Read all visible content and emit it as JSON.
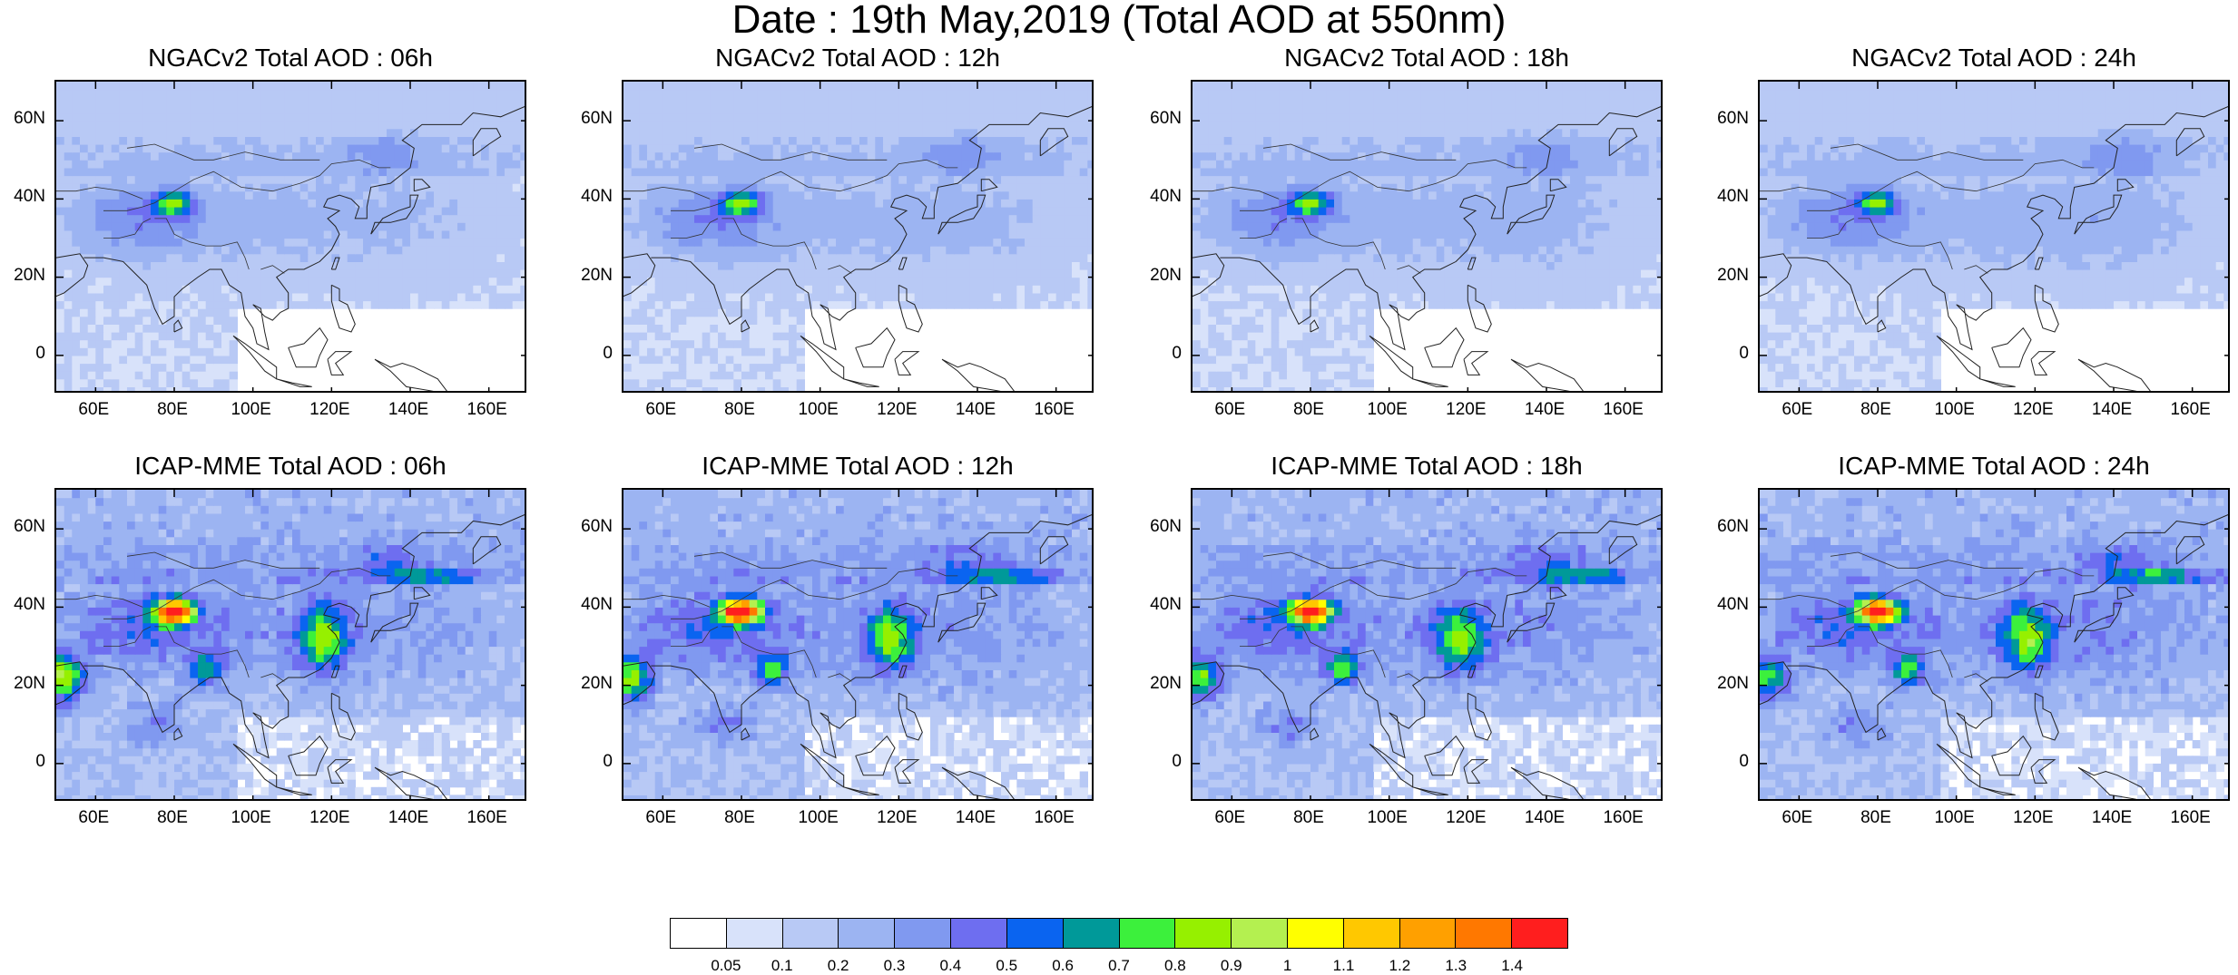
{
  "title": "Date : 19th May,2019 (Total AOD at 550nm)",
  "panels": [
    {
      "title": "NGACv2 Total AOD : 06h",
      "model": "ngac",
      "hour": 6
    },
    {
      "title": "NGACv2 Total AOD : 12h",
      "model": "ngac",
      "hour": 12
    },
    {
      "title": "NGACv2 Total AOD : 18h",
      "model": "ngac",
      "hour": 18
    },
    {
      "title": "NGACv2 Total AOD : 24h",
      "model": "ngac",
      "hour": 24
    },
    {
      "title": "ICAP-MME Total AOD : 06h",
      "model": "icap",
      "hour": 6
    },
    {
      "title": "ICAP-MME Total AOD : 12h",
      "model": "icap",
      "hour": 12
    },
    {
      "title": "ICAP-MME Total AOD : 18h",
      "model": "icap",
      "hour": 18
    },
    {
      "title": "ICAP-MME Total AOD : 24h",
      "model": "icap",
      "hour": 24
    }
  ],
  "lat_ticks": [
    "60N",
    "40N",
    "20N",
    "0"
  ],
  "lat_values": [
    60,
    40,
    20,
    0
  ],
  "lon_ticks": [
    "60E",
    "80E",
    "100E",
    "120E",
    "140E",
    "160E"
  ],
  "lon_values": [
    60,
    80,
    100,
    120,
    140,
    160
  ],
  "map_extent": {
    "lon": [
      50,
      170
    ],
    "lat": [
      -10,
      70
    ]
  },
  "colorbar": {
    "labels": [
      "0.05",
      "0.1",
      "0.2",
      "0.3",
      "0.4",
      "0.5",
      "0.6",
      "0.7",
      "0.8",
      "0.9",
      "1",
      "1.1",
      "1.2",
      "1.3",
      "1.4"
    ],
    "colors": [
      "#ffffff",
      "#d8e2fa",
      "#b8c9f5",
      "#9cb4f2",
      "#8099f0",
      "#6e6ef0",
      "#0a64f0",
      "#009999",
      "#3cf03c",
      "#96f000",
      "#b4f050",
      "#ffff00",
      "#ffc800",
      "#ffa000",
      "#ff7800",
      "#ff1e1e"
    ]
  }
}
